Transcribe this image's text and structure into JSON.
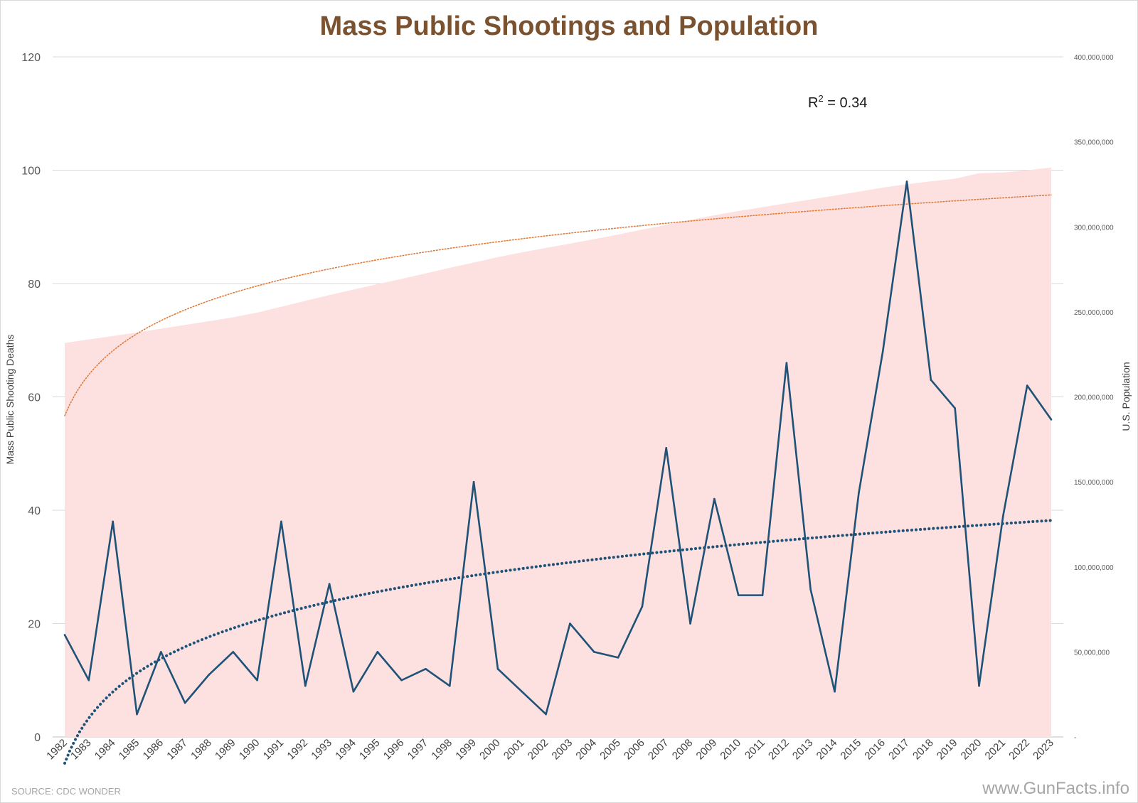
{
  "chart_data": {
    "type": "line",
    "title": "Mass Public Shootings and Population",
    "xlabel": "",
    "ylabel": "Mass Public Shooting Deaths",
    "y2label": "U.S. Population",
    "ylim": [
      0,
      120
    ],
    "y2lim": [
      0,
      400000000
    ],
    "yticks": [
      "0",
      "20",
      "40",
      "60",
      "80",
      "100",
      "120"
    ],
    "y2ticks": [
      "-",
      "50,000,000",
      "100,000,000",
      "150,000,000",
      "200,000,000",
      "250,000,000",
      "300,000,000",
      "350,000,000",
      "400,000,000"
    ],
    "grid": true,
    "categories": [
      "1982",
      "1983",
      "1984",
      "1985",
      "1986",
      "1987",
      "1988",
      "1989",
      "1990",
      "1991",
      "1992",
      "1993",
      "1994",
      "1995",
      "1996",
      "1997",
      "1998",
      "1999",
      "2000",
      "2001",
      "2002",
      "2003",
      "2004",
      "2005",
      "2006",
      "2007",
      "2008",
      "2009",
      "2010",
      "2011",
      "2012",
      "2013",
      "2014",
      "2015",
      "2016",
      "2017",
      "2018",
      "2019",
      "2020",
      "2021",
      "2022",
      "2023"
    ],
    "series": [
      {
        "name": "Mass Public Shooting Deaths",
        "type": "line",
        "axis": "left",
        "color": "#1f5277",
        "values": [
          18,
          10,
          38,
          4,
          15,
          6,
          11,
          15,
          10,
          38,
          9,
          27,
          8,
          15,
          10,
          12,
          9,
          45,
          12,
          8,
          4,
          20,
          15,
          14,
          23,
          51,
          20,
          42,
          25,
          25,
          66,
          26,
          8,
          43,
          68,
          98,
          63,
          58,
          9,
          39,
          62,
          56
        ]
      },
      {
        "name": "U.S. Population",
        "type": "area",
        "axis": "right",
        "color": "#fde0e0",
        "values": [
          231700000,
          233800000,
          235800000,
          237900000,
          240100000,
          242300000,
          244500000,
          246800000,
          249600000,
          253000000,
          256500000,
          259900000,
          263100000,
          266300000,
          269400000,
          272600000,
          275900000,
          279000000,
          282200000,
          285000000,
          287600000,
          290100000,
          292800000,
          295500000,
          298400000,
          301200000,
          304100000,
          306800000,
          309300000,
          311600000,
          313900000,
          316100000,
          318400000,
          320700000,
          323100000,
          325100000,
          326800000,
          328300000,
          331500000,
          332000000,
          333300000,
          334900000
        ]
      }
    ],
    "trendlines": [
      {
        "of": "Mass Public Shooting Deaths",
        "kind": "logarithmic",
        "color": "#1f5277",
        "style": "dotted"
      },
      {
        "of": "U.S. Population",
        "kind": "logarithmic",
        "color": "#e07b39",
        "style": "dotted"
      }
    ],
    "annotation": {
      "text_base": "R",
      "text_sup": "2",
      "text_rest": " = 0.34"
    },
    "footer": {
      "source": "SOURCE: CDC WONDER",
      "site": "www.GunFacts.info"
    }
  }
}
